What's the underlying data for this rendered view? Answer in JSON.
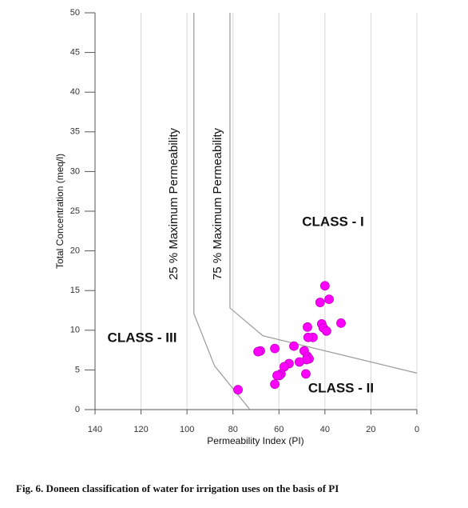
{
  "chart_data": {
    "type": "scatter",
    "x_label": "Permeability Index (PI)",
    "y_label": "Total Concentration (meq/l)",
    "xlim": [
      140,
      0
    ],
    "ylim": [
      0,
      50
    ],
    "xticks": [
      140,
      120,
      100,
      80,
      60,
      40,
      20,
      0
    ],
    "yticks": [
      0,
      5,
      10,
      15,
      20,
      25,
      30,
      35,
      40,
      45,
      50
    ],
    "grid": "x",
    "series": [
      {
        "color": "#ff00ff",
        "x": [
          40.0,
          38.2,
          42.1,
          33.0,
          41.4,
          40.7,
          47.6,
          39.3,
          45.2,
          47.3,
          61.8,
          68.1,
          69.1,
          53.5,
          49.0,
          47.6,
          46.9,
          48.0,
          51.1,
          55.6,
          57.7,
          59.1,
          59.8,
          60.8,
          48.3,
          61.8,
          77.8
        ],
        "values": [
          15.6,
          13.9,
          13.5,
          10.9,
          10.8,
          10.3,
          10.4,
          9.9,
          9.1,
          9.1,
          7.7,
          7.4,
          7.3,
          8.0,
          7.4,
          6.7,
          6.4,
          6.3,
          6.0,
          5.8,
          5.4,
          4.5,
          4.3,
          4.3,
          4.5,
          3.2,
          2.5
        ]
      }
    ],
    "boundaries": [
      {
        "label": "25 % Maximum Permeability",
        "x": [
          97,
          97,
          88,
          72.6
        ],
        "y": [
          50,
          12.1,
          5.5,
          0
        ]
      },
      {
        "label": "75 % Maximum Permeability",
        "x": [
          81.3,
          81.3,
          67,
          0
        ],
        "y": [
          50,
          12.8,
          9.3,
          4.6
        ]
      }
    ],
    "annotations": [
      "CLASS - I",
      "CLASS - II",
      "CLASS - III"
    ]
  },
  "caption": "Fig. 6. Doneen classification  of water for irrigation uses on the basis of PI"
}
